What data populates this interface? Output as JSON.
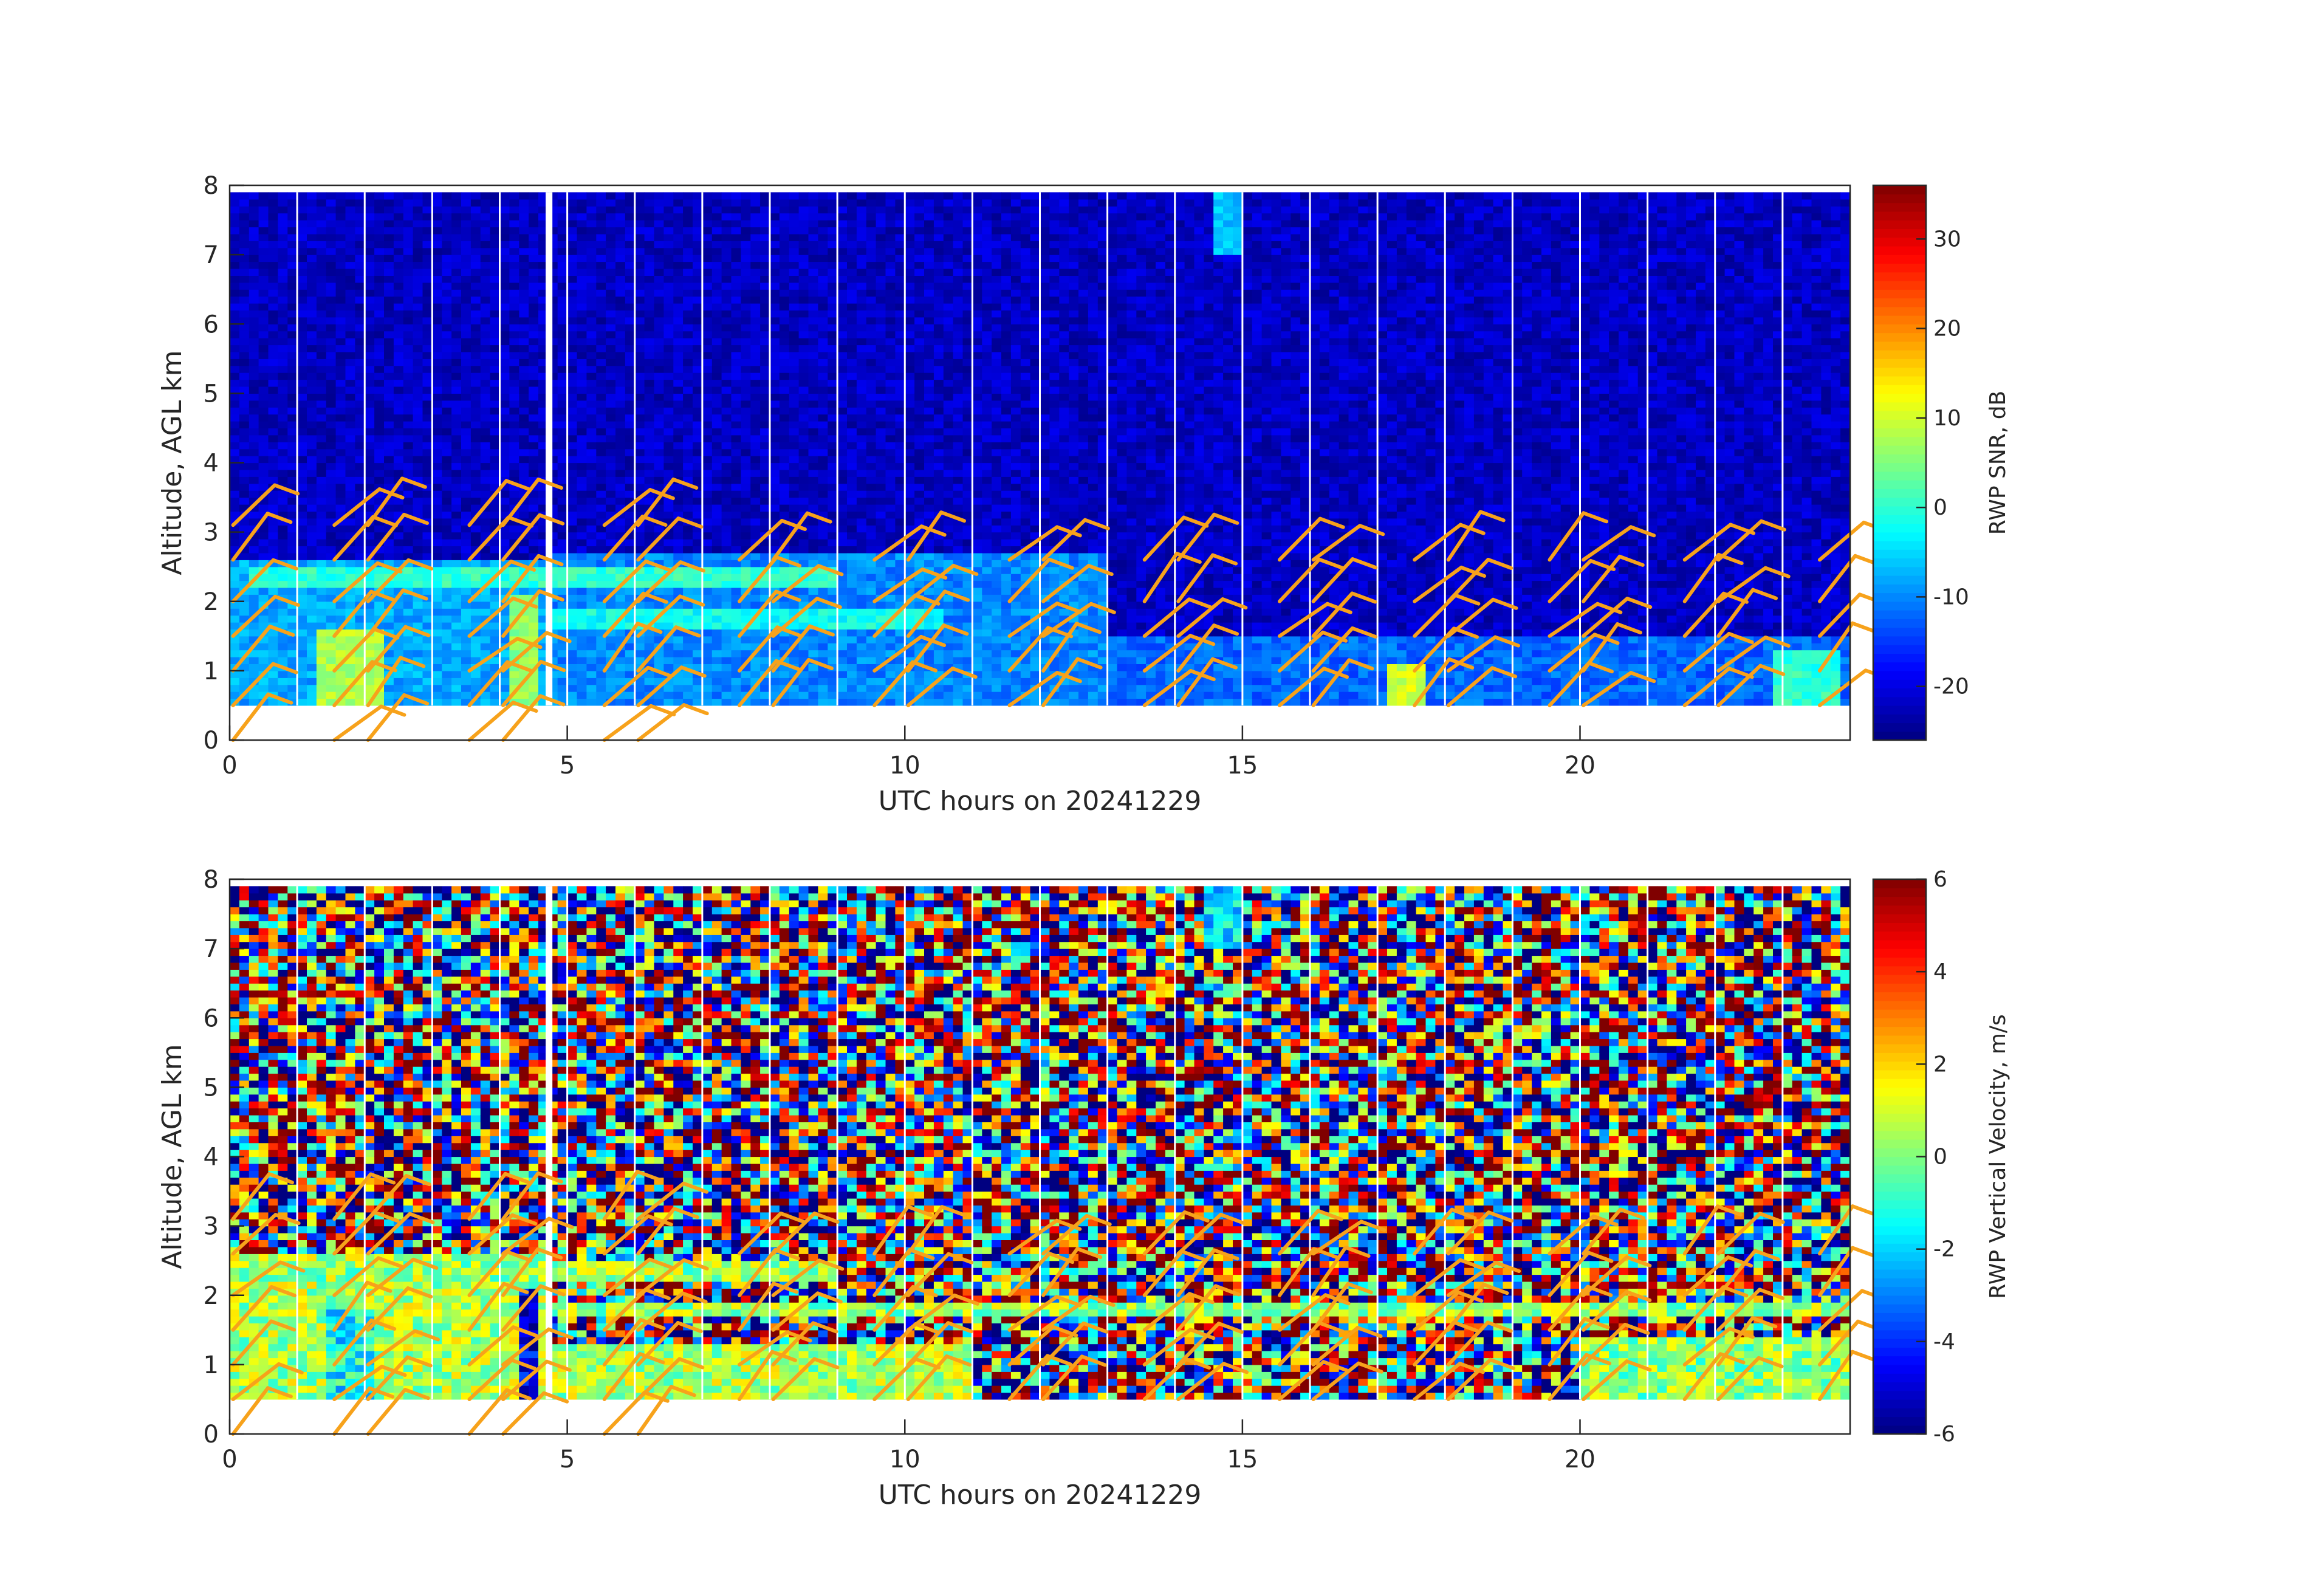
{
  "chart_data": [
    {
      "type": "heatmap",
      "xlabel": "UTC hours on 20241229",
      "ylabel": "Altitude, AGL km",
      "xlim": [
        0,
        24
      ],
      "ylim": [
        0,
        8
      ],
      "xticks": [
        0,
        5,
        10,
        15,
        20
      ],
      "yticks": [
        0,
        1,
        2,
        3,
        4,
        5,
        6,
        7,
        8
      ],
      "colorbar": {
        "label": "RWP SNR, dB",
        "colormap": "jet",
        "range": [
          -26,
          36
        ],
        "ticks": [
          -20,
          -10,
          0,
          10,
          20,
          30
        ]
      },
      "data_bottom_km": 0.5,
      "data_top_km": 7.9,
      "gap_hours": [
        1.0,
        2.0,
        3.0,
        4.0,
        5.0,
        6.0,
        7.0,
        8.0,
        9.0,
        10.0,
        11.0,
        12.0,
        13.0,
        14.0,
        15.0,
        16.0,
        17.0,
        18.0,
        19.0,
        20.0,
        21.0,
        22.0,
        23.0
      ],
      "features": [
        {
          "x0": 0.0,
          "x1": 24.0,
          "y0": 0.5,
          "y1": 7.9,
          "value": -22
        },
        {
          "x0": 0.0,
          "x1": 4.7,
          "y0": 0.5,
          "y1": 2.6,
          "value": -8
        },
        {
          "x0": 4.7,
          "x1": 13.0,
          "y0": 0.5,
          "y1": 2.7,
          "value": -10
        },
        {
          "x0": 13.0,
          "x1": 24.0,
          "y0": 0.5,
          "y1": 1.5,
          "value": -12
        },
        {
          "x0": 0.3,
          "x1": 9.0,
          "y0": 2.2,
          "y1": 2.5,
          "value": 0
        },
        {
          "x0": 4.7,
          "x1": 10.5,
          "y0": 1.6,
          "y1": 1.85,
          "value": -2
        },
        {
          "x0": 1.3,
          "x1": 2.3,
          "y0": 0.5,
          "y1": 1.6,
          "value": 8
        },
        {
          "x0": 4.2,
          "x1": 4.6,
          "y0": 0.5,
          "y1": 2.1,
          "value": 6
        },
        {
          "x0": 17.2,
          "x1": 17.7,
          "y0": 0.5,
          "y1": 1.1,
          "value": 10
        },
        {
          "x0": 14.6,
          "x1": 15.0,
          "y0": 7.0,
          "y1": 7.9,
          "value": -6
        },
        {
          "x0": 22.8,
          "x1": 23.9,
          "y0": 0.5,
          "y1": 1.3,
          "value": 0
        }
      ]
    },
    {
      "type": "heatmap",
      "xlabel": "UTC hours on 20241229",
      "ylabel": "Altitude, AGL km",
      "xlim": [
        0,
        24
      ],
      "ylim": [
        0,
        8
      ],
      "xticks": [
        0,
        5,
        10,
        15,
        20
      ],
      "yticks": [
        0,
        1,
        2,
        3,
        4,
        5,
        6,
        7,
        8
      ],
      "colorbar": {
        "label": "RWP Vertical Velocity, m/s",
        "colormap": "jet",
        "range": [
          -6,
          6
        ],
        "ticks": [
          -6,
          -4,
          -2,
          0,
          2,
          4,
          6
        ]
      },
      "data_bottom_km": 0.5,
      "data_top_km": 7.9,
      "gap_hours": [
        1.0,
        2.0,
        3.0,
        4.0,
        5.0,
        6.0,
        7.0,
        8.0,
        9.0,
        10.0,
        11.0,
        12.0,
        13.0,
        14.0,
        15.0,
        16.0,
        17.0,
        18.0,
        19.0,
        20.0,
        21.0,
        22.0,
        23.0
      ],
      "features": [
        {
          "x0": 0.0,
          "x1": 4.7,
          "y0": 0.5,
          "y1": 2.6,
          "value": 0.5
        },
        {
          "x0": 4.7,
          "x1": 11.0,
          "y0": 0.5,
          "y1": 1.3,
          "value": 0.5
        },
        {
          "x0": 0.3,
          "x1": 9.0,
          "y0": 2.2,
          "y1": 2.5,
          "value": 0.3
        },
        {
          "x0": 4.7,
          "x1": 16.0,
          "y0": 1.7,
          "y1": 1.9,
          "value": 0.3
        },
        {
          "x0": 16.0,
          "x1": 24.0,
          "y0": 1.7,
          "y1": 1.9,
          "value": 0.3
        },
        {
          "x0": 20.0,
          "x1": 24.0,
          "y0": 0.5,
          "y1": 1.4,
          "value": 0.2
        },
        {
          "x0": 1.5,
          "x1": 2.2,
          "y0": 0.5,
          "y1": 1.8,
          "value": -1.5
        },
        {
          "x0": 4.3,
          "x1": 4.6,
          "y0": 0.3,
          "y1": 2.1,
          "value": -5.0
        },
        {
          "x0": 14.4,
          "x1": 15.0,
          "y0": 7.0,
          "y1": 7.9,
          "value": -2.0
        }
      ]
    }
  ],
  "colors": {
    "barb": "#f7a21b",
    "axis": "#262626",
    "gap": "#ffffff"
  }
}
